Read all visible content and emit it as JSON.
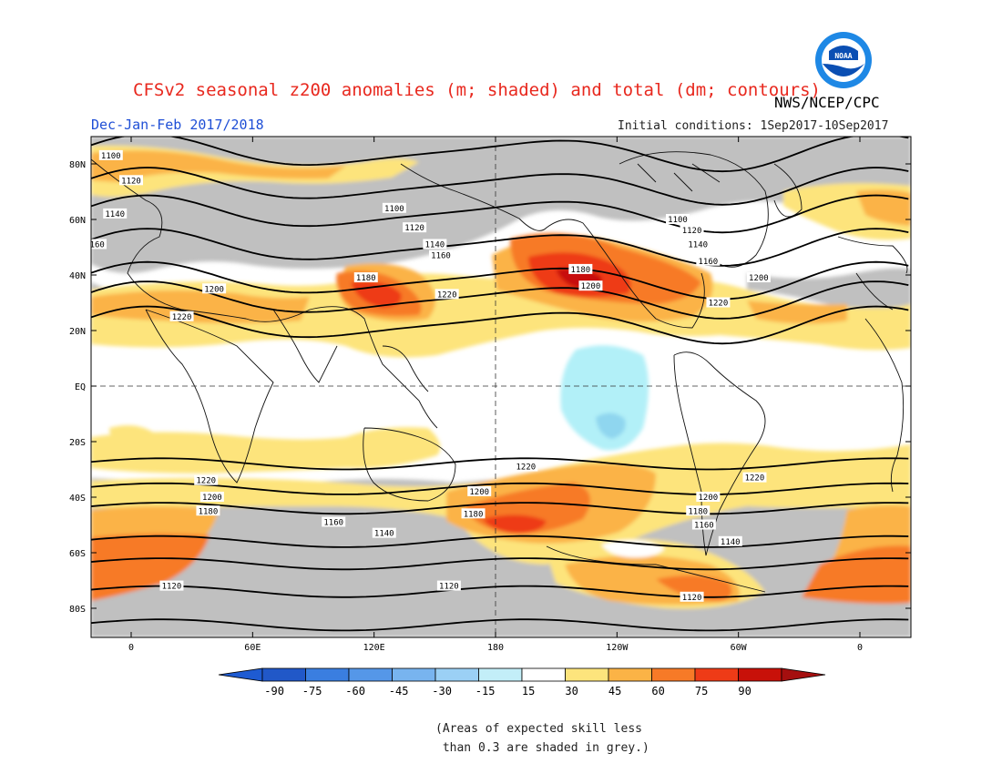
{
  "title": "CFSv2 seasonal z200 anomalies (m; shaded) and total (dm; contours)",
  "agency": "NWS/NCEP/CPC",
  "logo_text": "NOAA",
  "season": "Dec-Jan-Feb 2017/2018",
  "initial_conditions": "Initial conditions: 1Sep2017-10Sep2017",
  "note": "(Areas of expected skill less\n than 0.3 are shaded in grey.)",
  "colors": {
    "grey_noskill": "#c0c0c0",
    "pos_15_30": "#fde47c",
    "pos_30_45": "#fbb346",
    "pos_45_60": "#f77a27",
    "pos_60_75": "#ee3b17",
    "pos_75_90": "#c81109",
    "neg_15_30": "#b2f0f8",
    "neg_30_45": "#8fd6ef"
  },
  "map": {
    "lat_labels": [
      "80N",
      "60N",
      "40N",
      "20N",
      "EQ",
      "20S",
      "40S",
      "60S",
      "80S"
    ],
    "lon_labels": [
      "0",
      "60E",
      "120E",
      "180",
      "120W",
      "60W",
      "0"
    ]
  },
  "contours": [
    {
      "label": "1100",
      "lat": 84,
      "positions": [
        {
          "lon": -10,
          "lat": 83
        },
        {
          "lon": 130,
          "lat": 64
        },
        {
          "lon": 270,
          "lat": 60
        }
      ]
    },
    {
      "label": "1120",
      "lat": 72,
      "positions": [
        {
          "lon": 0,
          "lat": 74
        },
        {
          "lon": 140,
          "lat": 57
        },
        {
          "lon": 277,
          "lat": 56
        },
        {
          "lon": 20,
          "lat": -72
        },
        {
          "lon": 157,
          "lat": -72
        },
        {
          "lon": 277,
          "lat": -76
        }
      ]
    },
    {
      "label": "1140",
      "lat": 62,
      "positions": [
        {
          "lon": -8,
          "lat": 62
        },
        {
          "lon": 150,
          "lat": 51
        },
        {
          "lon": 280,
          "lat": 51
        },
        {
          "lon": 125,
          "lat": -53
        },
        {
          "lon": 296,
          "lat": -56
        }
      ]
    },
    {
      "label": "1160",
      "lat": 50,
      "positions": [
        {
          "lon": -18,
          "lat": 51
        },
        {
          "lon": 153,
          "lat": 47
        },
        {
          "lon": 285,
          "lat": 45
        },
        {
          "lon": 100,
          "lat": -49
        },
        {
          "lon": 283,
          "lat": -50
        }
      ]
    },
    {
      "label": "1180",
      "lat": 38,
      "positions": [
        {
          "lon": 116,
          "lat": 39
        },
        {
          "lon": 222,
          "lat": 42
        },
        {
          "lon": 38,
          "lat": -45
        },
        {
          "lon": 169,
          "lat": -46
        },
        {
          "lon": 280,
          "lat": -45
        }
      ]
    },
    {
      "label": "1200",
      "lat": 31,
      "positions": [
        {
          "lon": 41,
          "lat": 35
        },
        {
          "lon": 227,
          "lat": 36
        },
        {
          "lon": 310,
          "lat": 39
        },
        {
          "lon": 40,
          "lat": -40
        },
        {
          "lon": 172,
          "lat": -38
        },
        {
          "lon": 285,
          "lat": -40
        }
      ]
    },
    {
      "label": "1220",
      "lat": 22,
      "positions": [
        {
          "lon": 25,
          "lat": 25
        },
        {
          "lon": 156,
          "lat": 33
        },
        {
          "lon": 290,
          "lat": 30
        },
        {
          "lon": 37,
          "lat": -34
        },
        {
          "lon": 195,
          "lat": -29
        },
        {
          "lon": 308,
          "lat": -33
        }
      ]
    }
  ],
  "legend": {
    "ticks": [
      "-90",
      "-75",
      "-60",
      "-45",
      "-30",
      "-15",
      "15",
      "30",
      "45",
      "60",
      "75",
      "90"
    ],
    "colors": [
      "#2158c8",
      "#3a7ee0",
      "#5597e8",
      "#78b4ef",
      "#9bd0f5",
      "#c3eef8",
      "#ffffff",
      "#fde47c",
      "#fbb346",
      "#f77a27",
      "#ee3b17",
      "#c81109"
    ],
    "neg_end_color": "#1e5bd2",
    "pos_end_color": "#a50f0f"
  }
}
